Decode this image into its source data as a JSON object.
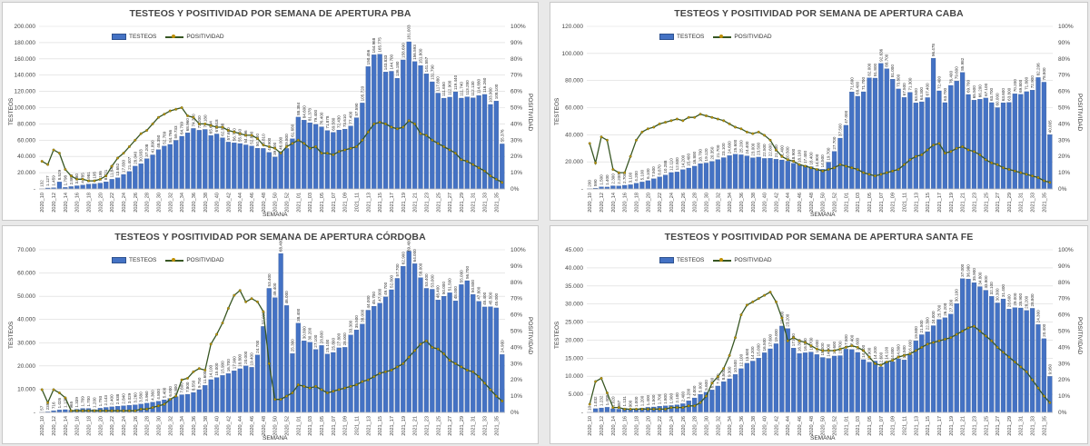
{
  "colors": {
    "bar": "#4472c4",
    "bar_edge": "#2f528f",
    "line": "#375623",
    "marker": "#bf8f00",
    "grid": "#d9d9d9"
  },
  "legend": {
    "bars": "TESTEOS",
    "line": "POSITIVIDAD"
  },
  "axes": {
    "x": "SEMANA",
    "y_left": "TESTEOS",
    "y_right": "POSITIVIDAD"
  },
  "chart_data": [
    {
      "type": "bar",
      "title": "TESTEOS Y POSITIVIDAD POR SEMANA DE APERTURA PBA",
      "xlabel": "SEMANA",
      "ylabel": "TESTEOS",
      "y2label": "POSITIVIDAD",
      "ylim": [
        0,
        200000
      ],
      "ystep": 20000,
      "y2lim": [
        0,
        100
      ],
      "categories": [
        "2020_10",
        "2020_11",
        "2020_12",
        "2020_13",
        "2020_14",
        "2020_15",
        "2020_16",
        "2020_17",
        "2020_18",
        "2020_19",
        "2020_20",
        "2020_21",
        "2020_22",
        "2020_23",
        "2020_24",
        "2020_25",
        "2020_26",
        "2020_27",
        "2020_28",
        "2020_29",
        "2020_30",
        "2020_31",
        "2020_32",
        "2020_33",
        "2020_34",
        "2020_35",
        "2020_36",
        "2020_37",
        "2020_38",
        "2020_39",
        "2020_40",
        "2020_41",
        "2020_42",
        "2020_43",
        "2020_44",
        "2020_45",
        "2020_46",
        "2020_47",
        "2020_48",
        "2020_49",
        "2020_50",
        "2020_51",
        "2020_52",
        "2020_53",
        "2021_01",
        "2021_02",
        "2021_03",
        "2021_04",
        "2021_05",
        "2021_06",
        "2021_07",
        "2021_08",
        "2021_09",
        "2021_10",
        "2021_11",
        "2021_12",
        "2021_13",
        "2021_14",
        "2021_15",
        "2021_16",
        "2021_17",
        "2021_18",
        "2021_19",
        "2021_20",
        "2021_21",
        "2021_22",
        "2021_23",
        "2021_24",
        "2021_25",
        "2021_26",
        "2021_27",
        "2021_28",
        "2021_29",
        "2021_30",
        "2021_31",
        "2021_32",
        "2021_33",
        "2021_34",
        "2021_35",
        "2021_36"
      ],
      "series": [
        {
          "name": "TESTEOS",
          "kind": "bar",
          "values": [
            132,
            1127,
            1459,
            8529,
            1798,
            2868,
            3880,
            4785,
            5981,
            6195,
            7195,
            8721,
            11845,
            13652,
            17830,
            21407,
            28040,
            30933,
            37208,
            41890,
            48350,
            52789,
            54766,
            59733,
            64799,
            68960,
            74370,
            72200,
            73180,
            65694,
            67618,
            62888,
            57650,
            56700,
            55850,
            54196,
            52800,
            50100,
            49810,
            44900,
            39200,
            46000,
            49800,
            61680,
            88384,
            84600,
            81378,
            79400,
            76400,
            71878,
            69580,
            72430,
            73610,
            77400,
            87590,
            105720,
            150456,
            164968,
            165775,
            143833,
            144700,
            136180,
            158690,
            181003,
            156593,
            151800,
            141557,
            131790,
            117880,
            111650,
            112900,
            119440,
            111740,
            113280,
            112130,
            114880,
            116260,
            103900,
            108100,
            55376
          ]
        },
        {
          "name": "POSITIVIDAD",
          "kind": "line",
          "values": [
            17,
            15,
            24,
            22,
            12,
            8,
            6,
            6,
            5,
            5,
            6,
            8,
            14,
            19,
            22,
            26,
            30,
            34,
            36,
            40,
            44,
            46,
            48,
            49,
            50,
            45,
            44,
            40,
            40,
            39,
            38,
            38,
            36,
            35,
            34,
            33,
            33,
            31,
            27,
            26,
            25,
            22,
            26,
            28,
            30,
            28,
            25,
            26,
            22,
            22,
            21,
            23,
            24,
            25,
            26,
            30,
            35,
            40,
            41,
            40,
            38,
            37,
            38,
            42,
            40,
            34,
            33,
            30,
            28,
            26,
            24,
            22,
            18,
            17,
            15,
            13,
            11,
            8,
            6,
            4
          ]
        }
      ]
    },
    {
      "type": "bar",
      "title": "TESTEOS Y POSITIVIDAD POR SEMANA DE APERTURA CABA",
      "xlabel": "SEMANA",
      "ylabel": "TESTEOS",
      "y2label": "POSITIVIDAD",
      "ylim": [
        0,
        120000
      ],
      "ystep": 20000,
      "y2lim": [
        0,
        100
      ],
      "categories": [
        "2020_10",
        "2020_11",
        "2020_12",
        "2020_13",
        "2020_14",
        "2020_15",
        "2020_16",
        "2020_17",
        "2020_18",
        "2020_19",
        "2020_20",
        "2020_21",
        "2020_22",
        "2020_23",
        "2020_24",
        "2020_25",
        "2020_26",
        "2020_27",
        "2020_28",
        "2020_29",
        "2020_30",
        "2020_31",
        "2020_32",
        "2020_33",
        "2020_34",
        "2020_35",
        "2020_36",
        "2020_37",
        "2020_38",
        "2020_39",
        "2020_40",
        "2020_41",
        "2020_42",
        "2020_43",
        "2020_44",
        "2020_45",
        "2020_46",
        "2020_47",
        "2020_48",
        "2020_49",
        "2020_50",
        "2020_51",
        "2020_52",
        "2020_53",
        "2021_01",
        "2021_02",
        "2021_03",
        "2021_04",
        "2021_05",
        "2021_06",
        "2021_07",
        "2021_08",
        "2021_09",
        "2021_10",
        "2021_11",
        "2021_12",
        "2021_13",
        "2021_14",
        "2021_15",
        "2021_16",
        "2021_17",
        "2021_18",
        "2021_19",
        "2021_20",
        "2021_21",
        "2021_22",
        "2021_23",
        "2021_24",
        "2021_25",
        "2021_26",
        "2021_27",
        "2021_28",
        "2021_29",
        "2021_30",
        "2021_31",
        "2021_32",
        "2021_33",
        "2021_34",
        "2021_35",
        "2021_36"
      ],
      "series": [
        {
          "name": "TESTEOS",
          "kind": "bar",
          "values": [
            200,
            590,
            1500,
            1400,
            2300,
            2200,
            2700,
            3100,
            4200,
            5100,
            6100,
            7500,
            8870,
            10288,
            12110,
            12500,
            14200,
            15400,
            16800,
            18700,
            19120,
            20350,
            21700,
            23100,
            24600,
            25600,
            25200,
            24400,
            23000,
            23500,
            22500,
            22600,
            21900,
            21400,
            20500,
            18900,
            18100,
            17400,
            16400,
            14900,
            14500,
            19700,
            27700,
            37500,
            47000,
            71600,
            68400,
            71700,
            82000,
            81800,
            92636,
            88700,
            81000,
            73800,
            67500,
            71300,
            63500,
            64300,
            67400,
            96478,
            72400,
            63700,
            76400,
            79600,
            85982,
            69700,
            65500,
            66200,
            67100,
            63700,
            60000,
            63600,
            63800,
            70200,
            69800,
            71800,
            72900,
            82206,
            78800,
            40005
          ]
        },
        {
          "name": "POSITIVIDAD",
          "kind": "line",
          "values": [
            28,
            16,
            32,
            30,
            12,
            10,
            10,
            20,
            30,
            35,
            37,
            38,
            40,
            41,
            42,
            43,
            42,
            44,
            44,
            46,
            45,
            44,
            43,
            42,
            40,
            38,
            37,
            35,
            34,
            35,
            33,
            30,
            24,
            20,
            18,
            17,
            15,
            14,
            13,
            12,
            11,
            12,
            13,
            15,
            14,
            13,
            12,
            10,
            9,
            8,
            9,
            10,
            11,
            12,
            15,
            18,
            20,
            21,
            24,
            27,
            28,
            22,
            23,
            25,
            26,
            24,
            23,
            21,
            18,
            16,
            15,
            13,
            12,
            11,
            10,
            9,
            8,
            7,
            5,
            4
          ]
        }
      ]
    },
    {
      "type": "bar",
      "title": "TESTEOS Y POSITIVIDAD POR SEMANA DE APERTURA CÓRDOBA",
      "xlabel": "SEMANA",
      "ylabel": "TESTEOS",
      "y2label": "POSITIVIDAD",
      "ylim": [
        0,
        70000
      ],
      "ystep": 10000,
      "y2lim": [
        0,
        100
      ],
      "categories": [
        "2020_10",
        "2020_11",
        "2020_12",
        "2020_13",
        "2020_14",
        "2020_15",
        "2020_16",
        "2020_17",
        "2020_18",
        "2020_19",
        "2020_20",
        "2020_21",
        "2020_22",
        "2020_23",
        "2020_24",
        "2020_25",
        "2020_26",
        "2020_27",
        "2020_28",
        "2020_29",
        "2020_30",
        "2020_31",
        "2020_32",
        "2020_33",
        "2020_34",
        "2020_35",
        "2020_36",
        "2020_37",
        "2020_38",
        "2020_39",
        "2020_40",
        "2020_41",
        "2020_42",
        "2020_43",
        "2020_44",
        "2020_45",
        "2020_46",
        "2020_47",
        "2020_48",
        "2020_49",
        "2020_50",
        "2020_51",
        "2020_52",
        "2020_53",
        "2021_01",
        "2021_02",
        "2021_03",
        "2021_04",
        "2021_05",
        "2021_06",
        "2021_07",
        "2021_08",
        "2021_09",
        "2021_10",
        "2021_11",
        "2021_12",
        "2021_13",
        "2021_14",
        "2021_15",
        "2021_16",
        "2021_17",
        "2021_18",
        "2021_19",
        "2021_20",
        "2021_21",
        "2021_22",
        "2021_23",
        "2021_24",
        "2021_25",
        "2021_26",
        "2021_27",
        "2021_28",
        "2021_29",
        "2021_30",
        "2021_31",
        "2021_32",
        "2021_33",
        "2021_34",
        "2021_35",
        "2021_36"
      ],
      "series": [
        {
          "name": "TESTEOS",
          "kind": "bar",
          "values": [
            57,
            235,
            716,
            1026,
            1175,
            965,
            1339,
            1709,
            1700,
            1200,
            1793,
            2143,
            2400,
            2638,
            2840,
            3029,
            3260,
            3580,
            3960,
            4360,
            4800,
            5400,
            6000,
            6800,
            7600,
            7800,
            8550,
            9750,
            11600,
            14100,
            15000,
            15900,
            16700,
            17900,
            18800,
            20000,
            19400,
            24700,
            37000,
            53400,
            49400,
            68400,
            46000,
            25300,
            38400,
            30800,
            30200,
            27100,
            28800,
            25100,
            25800,
            27800,
            28000,
            33300,
            35500,
            38000,
            44000,
            45700,
            47000,
            49700,
            52800,
            57700,
            62900,
            69400,
            64000,
            58000,
            53400,
            53000,
            48400,
            50000,
            51500,
            48000,
            55000,
            56700,
            50800,
            47800,
            45400,
            45500,
            45000,
            24900
          ]
        },
        {
          "name": "POSITIVIDAD",
          "kind": "line",
          "values": [
            14,
            6,
            14,
            12,
            9,
            1,
            1,
            1,
            1,
            1,
            1,
            1,
            1,
            1,
            1,
            1,
            1,
            2,
            2,
            3,
            4,
            5,
            8,
            10,
            20,
            21,
            25,
            27,
            26,
            42,
            48,
            55,
            64,
            72,
            75,
            68,
            70,
            68,
            62,
            30,
            8,
            8,
            10,
            12,
            17,
            16,
            15,
            16,
            14,
            12,
            13,
            14,
            15,
            16,
            17,
            19,
            20,
            22,
            24,
            25,
            26,
            28,
            30,
            34,
            38,
            42,
            44,
            40,
            39,
            36,
            32,
            30,
            28,
            26,
            25,
            22,
            18,
            14,
            10,
            7
          ]
        }
      ]
    },
    {
      "type": "bar",
      "title": "TESTEOS Y POSITIVIDAD POR SEMANA DE APERTURA SANTA FE",
      "xlabel": "SEMANA",
      "ylabel": "TESTEOS",
      "y2label": "POSITIVIDAD",
      "ylim": [
        0,
        45000
      ],
      "ystep": 5000,
      "y2lim": [
        0,
        100
      ],
      "categories": [
        "2020_10",
        "2020_11",
        "2020_12",
        "2020_13",
        "2020_14",
        "2020_15",
        "2020_16",
        "2020_17",
        "2020_18",
        "2020_19",
        "2020_20",
        "2020_21",
        "2020_22",
        "2020_23",
        "2020_24",
        "2020_25",
        "2020_26",
        "2020_27",
        "2020_28",
        "2020_29",
        "2020_30",
        "2020_31",
        "2020_32",
        "2020_33",
        "2020_34",
        "2020_35",
        "2020_36",
        "2020_37",
        "2020_38",
        "2020_39",
        "2020_40",
        "2020_41",
        "2020_42",
        "2020_43",
        "2020_44",
        "2020_45",
        "2020_46",
        "2020_47",
        "2020_48",
        "2020_49",
        "2020_50",
        "2020_51",
        "2020_52",
        "2020_53",
        "2021_01",
        "2021_02",
        "2021_03",
        "2021_04",
        "2021_05",
        "2021_06",
        "2021_07",
        "2021_08",
        "2021_09",
        "2021_10",
        "2021_11",
        "2021_12",
        "2021_13",
        "2021_14",
        "2021_15",
        "2021_16",
        "2021_17",
        "2021_18",
        "2021_19",
        "2021_20",
        "2021_21",
        "2021_22",
        "2021_23",
        "2021_24",
        "2021_25",
        "2021_26",
        "2021_27",
        "2021_28",
        "2021_29",
        "2021_30",
        "2021_31",
        "2021_32",
        "2021_33",
        "2021_34",
        "2021_35",
        "2021_36"
      ],
      "series": [
        {
          "name": "TESTEOS",
          "kind": "bar",
          "values": [
            10,
            1032,
            1232,
            1408,
            1020,
            887,
            1131,
            900,
            1000,
            1200,
            1400,
            1500,
            1700,
            1800,
            1900,
            2100,
            2400,
            3200,
            4000,
            5000,
            5600,
            6200,
            7300,
            8500,
            9300,
            10500,
            12100,
            13600,
            14200,
            15000,
            16500,
            17600,
            19000,
            23900,
            23200,
            17800,
            16300,
            16500,
            16700,
            16000,
            15200,
            14900,
            15600,
            15700,
            17500,
            17400,
            16600,
            14600,
            13900,
            14200,
            12600,
            14100,
            14000,
            14800,
            14500,
            16000,
            19800,
            21500,
            22300,
            24000,
            25700,
            26200,
            27200,
            30100,
            37000,
            36900,
            35900,
            34800,
            33800,
            32100,
            30300,
            31400,
            28600,
            29000,
            28900,
            28200,
            28800,
            24300,
            20400,
            9950
          ]
        },
        {
          "name": "POSITIVIDAD",
          "kind": "line",
          "values": [
            5,
            19,
            21,
            12,
            3,
            3,
            2,
            2,
            2,
            2,
            2,
            2,
            2,
            2,
            3,
            3,
            3,
            4,
            4,
            6,
            10,
            18,
            22,
            27,
            35,
            46,
            60,
            66,
            68,
            70,
            72,
            74,
            68,
            58,
            44,
            46,
            44,
            43,
            41,
            39,
            38,
            38,
            38,
            39,
            40,
            41,
            40,
            38,
            34,
            30,
            29,
            31,
            32,
            34,
            35,
            36,
            38,
            40,
            42,
            43,
            44,
            45,
            46,
            48,
            50,
            52,
            53,
            50,
            47,
            44,
            40,
            37,
            34,
            31,
            28,
            25,
            20,
            15,
            10,
            6
          ]
        }
      ]
    }
  ]
}
